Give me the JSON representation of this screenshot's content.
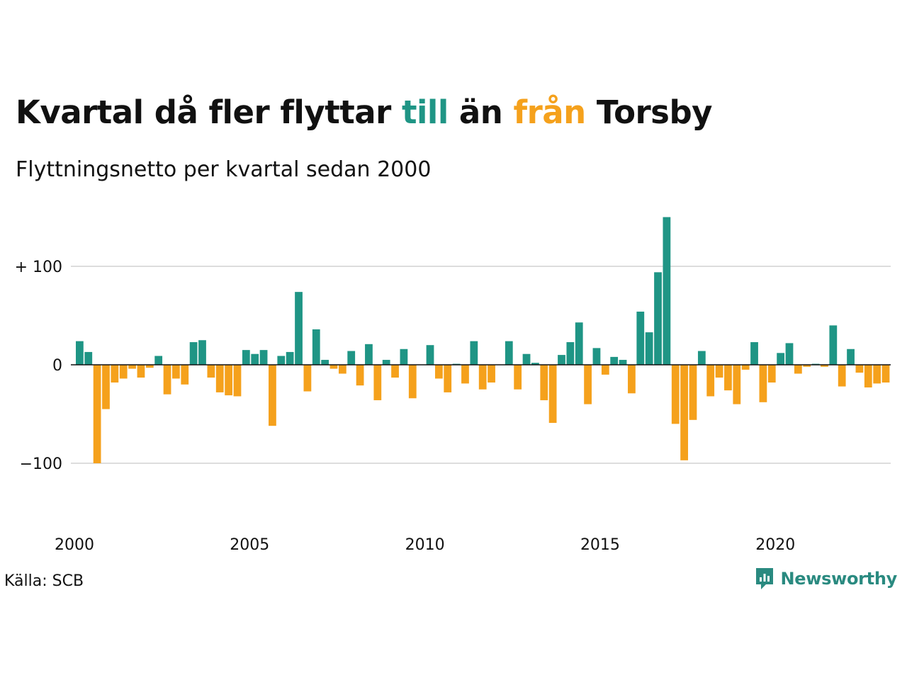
{
  "title": {
    "part1": "Kvartal då fler flyttar ",
    "till": "till",
    "part2": " än ",
    "fran": "från",
    "part3": " Torsby"
  },
  "subtitle": "Flyttningsnetto per kvartal sedan 2000",
  "source": "Källa: SCB",
  "brand": "Newsworthy",
  "colors": {
    "positive": "#1f9585",
    "negative": "#f5a11c",
    "brand": "#2a8a80"
  },
  "chart_data": {
    "type": "bar",
    "x_start": "2000Q1",
    "x_ticks": [
      "2000",
      "2005",
      "2010",
      "2015",
      "2020"
    ],
    "y_ticks": [
      {
        "value": 100,
        "label": "+ 100"
      },
      {
        "value": 0,
        "label": "0"
      },
      {
        "value": -100,
        "label": "−100"
      }
    ],
    "ylim": [
      -100,
      150
    ],
    "grid": true,
    "categories": [
      "2000Q1",
      "2000Q2",
      "2000Q3",
      "2000Q4",
      "2001Q1",
      "2001Q2",
      "2001Q3",
      "2001Q4",
      "2002Q1",
      "2002Q2",
      "2002Q3",
      "2002Q4",
      "2003Q1",
      "2003Q2",
      "2003Q3",
      "2003Q4",
      "2004Q1",
      "2004Q2",
      "2004Q3",
      "2004Q4",
      "2005Q1",
      "2005Q2",
      "2005Q3",
      "2005Q4",
      "2006Q1",
      "2006Q2",
      "2006Q3",
      "2006Q4",
      "2007Q1",
      "2007Q2",
      "2007Q3",
      "2007Q4",
      "2008Q1",
      "2008Q2",
      "2008Q3",
      "2008Q4",
      "2009Q1",
      "2009Q2",
      "2009Q3",
      "2009Q4",
      "2010Q1",
      "2010Q2",
      "2010Q3",
      "2010Q4",
      "2011Q1",
      "2011Q2",
      "2011Q3",
      "2011Q4",
      "2012Q1",
      "2012Q2",
      "2012Q3",
      "2012Q4",
      "2013Q1",
      "2013Q2",
      "2013Q3",
      "2013Q4",
      "2014Q1",
      "2014Q2",
      "2014Q3",
      "2014Q4",
      "2015Q1",
      "2015Q2",
      "2015Q3",
      "2015Q4",
      "2016Q1",
      "2016Q2",
      "2016Q3",
      "2016Q4",
      "2017Q1",
      "2017Q2",
      "2017Q3",
      "2017Q4",
      "2018Q1",
      "2018Q2",
      "2018Q3",
      "2018Q4",
      "2019Q1",
      "2019Q2",
      "2019Q3",
      "2019Q4",
      "2020Q1",
      "2020Q2",
      "2020Q3",
      "2020Q4",
      "2021Q1",
      "2021Q2",
      "2021Q3",
      "2021Q4",
      "2022Q1",
      "2022Q2",
      "2022Q3",
      "2022Q4",
      "2023Q1"
    ],
    "values": [
      24,
      13,
      -100,
      -45,
      -18,
      -14,
      -4,
      -13,
      -3,
      9,
      -30,
      -14,
      -20,
      23,
      25,
      -13,
      -28,
      -31,
      -32,
      15,
      11,
      15,
      -62,
      9,
      13,
      74,
      -27,
      36,
      5,
      -4,
      -9,
      14,
      -21,
      21,
      -36,
      5,
      -13,
      16,
      -34,
      0,
      20,
      -14,
      -28,
      1,
      -19,
      24,
      -25,
      -18,
      0,
      24,
      -25,
      11,
      2,
      -36,
      -59,
      10,
      23,
      43,
      -40,
      17,
      -10,
      8,
      5,
      -29,
      54,
      33,
      94,
      150,
      -60,
      -97,
      -56,
      14,
      -32,
      -13,
      -26,
      -40,
      -5,
      23,
      -38,
      -18,
      12,
      22,
      -9,
      -2,
      1,
      -2,
      40,
      -22,
      16,
      -8,
      -23,
      -19,
      -18
    ]
  }
}
